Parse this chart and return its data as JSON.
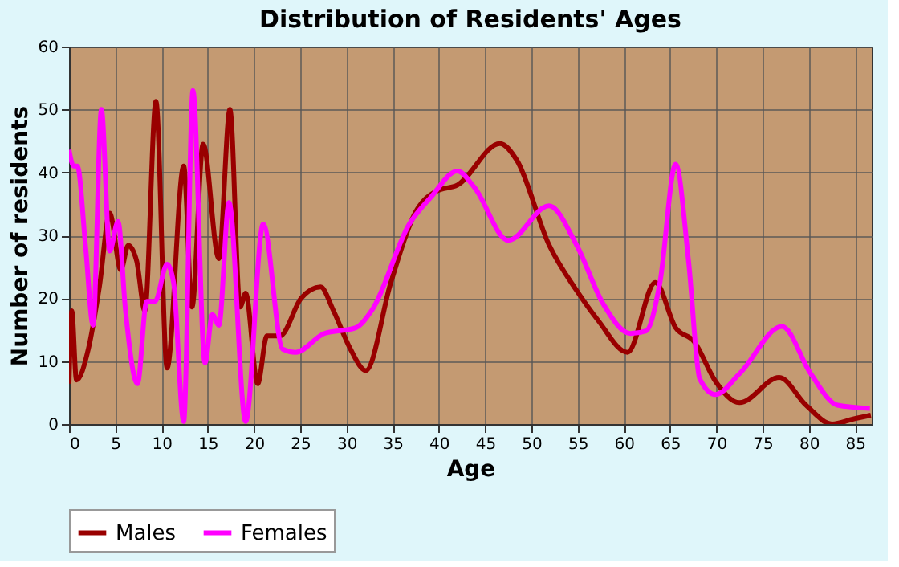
{
  "chart_data": {
    "type": "line",
    "title": "Distribution of Residents' Ages",
    "xlabel": "Age",
    "ylabel": "Number of residents",
    "xlim": [
      0,
      86.8
    ],
    "ylim": [
      0,
      60
    ],
    "xticks": [
      0,
      5,
      10,
      15,
      20,
      25,
      30,
      35,
      40,
      45,
      50,
      55,
      60,
      65,
      70,
      75,
      80,
      85
    ],
    "yticks": [
      0,
      10,
      20,
      30,
      40,
      50,
      60
    ],
    "grid": true,
    "legend": "bottom",
    "line_style": "solid",
    "marker": "none",
    "series": [
      {
        "name": "Males",
        "color": "#990000",
        "x": [
          0,
          0.3,
          0.8,
          2.1,
          3.3,
          4.4,
          5.6,
          6.4,
          7.3,
          8.2,
          9.4,
          10.6,
          12.4,
          13.3,
          14.5,
          16.2,
          17.4,
          18.5,
          19.1,
          20.4,
          21.4,
          22.8,
          25.1,
          27.2,
          28.6,
          30.4,
          32.1,
          34.8,
          37.4,
          39.7,
          42,
          46.6,
          48.4,
          51.9,
          54.9,
          57.2,
          60.4,
          63.4,
          65.6,
          67.6,
          69.9,
          72.5,
          76.8,
          79.7,
          82.5,
          84.8,
          86.7
        ],
        "values": [
          6.4,
          18,
          7,
          12,
          22,
          33.5,
          24.5,
          28.4,
          26,
          18,
          51.3,
          8.9,
          41,
          18.6,
          44.5,
          26.3,
          50,
          18.6,
          20.8,
          6.4,
          14,
          14,
          20,
          21.8,
          18,
          12,
          8.5,
          22.5,
          33.5,
          37,
          38,
          44.6,
          42,
          28.5,
          21.2,
          16.5,
          11.4,
          22.5,
          15.3,
          13.1,
          6.8,
          3.4,
          7.4,
          3,
          0,
          0.8,
          1.4
        ]
      },
      {
        "name": "Females",
        "color": "#ff00ff",
        "x": [
          0,
          0.5,
          0.9,
          1.8,
          2.6,
          3.5,
          4.4,
          5.3,
          6.1,
          7.4,
          8.4,
          9.3,
          10.6,
          11.3,
          12.4,
          13.4,
          14.7,
          15.5,
          16.2,
          17.3,
          19.1,
          21,
          23.1,
          24.5,
          27.6,
          31,
          32.8,
          36.8,
          39.1,
          42,
          43.8,
          47.5,
          51.9,
          54.9,
          57.8,
          60.7,
          62.4,
          63.9,
          65.6,
          67,
          68.2,
          69.9,
          72.5,
          77.1,
          80.2,
          83.1,
          86.6
        ],
        "values": [
          43.6,
          41,
          41,
          28,
          15.7,
          50,
          27.5,
          32.2,
          18.2,
          6.4,
          19.5,
          19.5,
          25.4,
          22.5,
          0.4,
          53,
          9.7,
          17.4,
          15.7,
          35.2,
          0.4,
          31.8,
          11.9,
          11.4,
          14.4,
          15.3,
          18.2,
          31.8,
          36,
          40.2,
          37.7,
          29.2,
          34.7,
          28.4,
          19,
          14.4,
          14.8,
          22.5,
          41.3,
          25.8,
          7.2,
          4.7,
          8,
          15.5,
          8,
          3,
          2.5
        ]
      }
    ]
  }
}
